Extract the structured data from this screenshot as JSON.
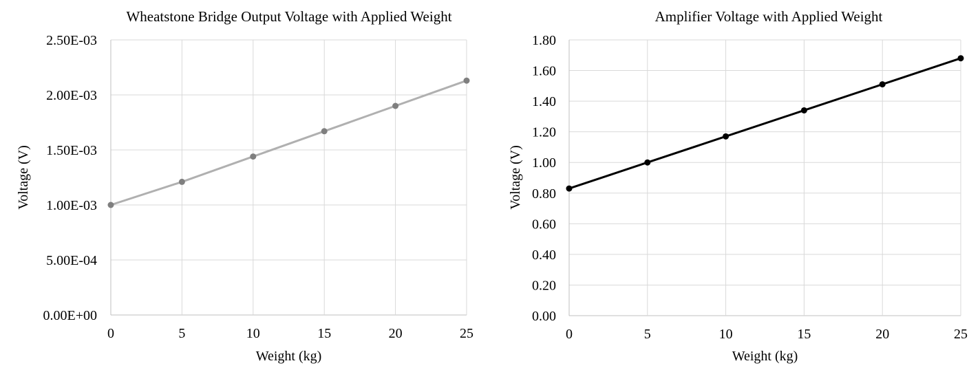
{
  "chart_data": [
    {
      "type": "line",
      "title": "Wheatstone Bridge Output Voltage with Applied Weight",
      "xlabel": "Weight (kg)",
      "ylabel": "Voltage (V)",
      "x": [
        0,
        5,
        10,
        15,
        20,
        25
      ],
      "xticks": [
        "0",
        "5",
        "10",
        "15",
        "20",
        "25"
      ],
      "xlim": [
        0,
        25
      ],
      "ylim": [
        0,
        0.0025
      ],
      "yticks": [
        0,
        0.0005,
        0.001,
        0.0015,
        0.002,
        0.0025
      ],
      "yticklabels": [
        "0.00E+00",
        "5.00E-04",
        "1.00E-03",
        "1.50E-03",
        "2.00E-03",
        "2.50E-03"
      ],
      "grid": true,
      "series": [
        {
          "values": [
            0.001,
            0.00121,
            0.00144,
            0.00167,
            0.0019,
            0.00213
          ],
          "line_color": "#b0b0b0",
          "marker_color": "#7f7f7f"
        }
      ]
    },
    {
      "type": "line",
      "title": "Amplifier Voltage with Applied Weight",
      "xlabel": "Weight (kg)",
      "ylabel": "Voltage (V)",
      "x": [
        0,
        5,
        10,
        15,
        20,
        25
      ],
      "xticks": [
        "0",
        "5",
        "10",
        "15",
        "20",
        "25"
      ],
      "xlim": [
        0,
        25
      ],
      "ylim": [
        0,
        1.8
      ],
      "yticks": [
        0,
        0.2,
        0.4,
        0.6,
        0.8,
        1.0,
        1.2,
        1.4,
        1.6,
        1.8
      ],
      "yticklabels": [
        "0.00",
        "0.20",
        "0.40",
        "0.60",
        "0.80",
        "1.00",
        "1.20",
        "1.40",
        "1.60",
        "1.80"
      ],
      "grid": true,
      "series": [
        {
          "values": [
            0.83,
            1.0,
            1.17,
            1.34,
            1.51,
            1.68
          ],
          "line_color": "#000000",
          "marker_color": "#000000"
        }
      ]
    }
  ]
}
